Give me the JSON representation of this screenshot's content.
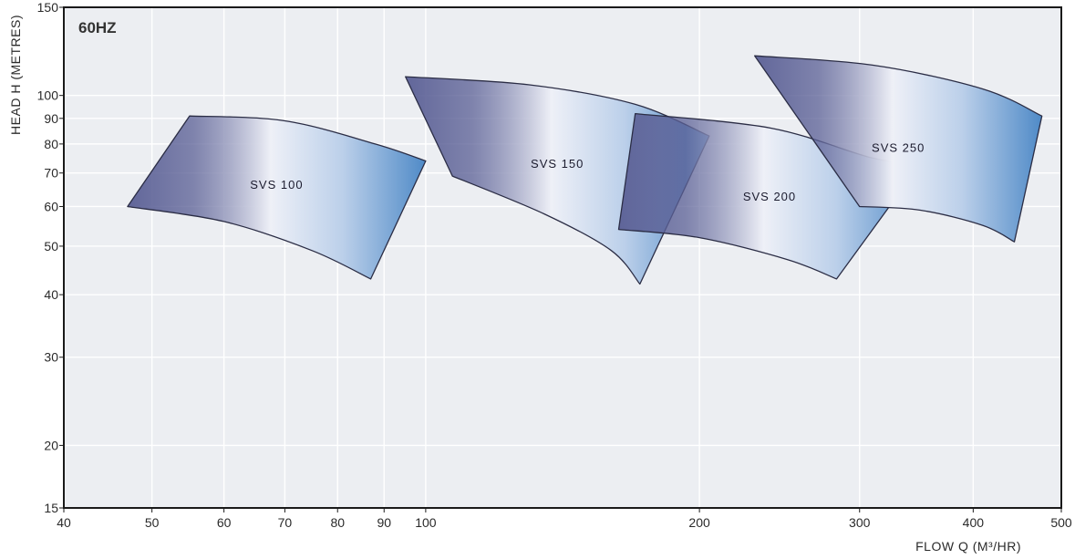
{
  "chart_data": {
    "type": "area",
    "badge": "60HZ",
    "xlabel": "FLOW Q (M³/HR)",
    "ylabel": "HEAD H (METRES)",
    "x_scale": "log",
    "y_scale": "log",
    "xlim": [
      40,
      500
    ],
    "ylim": [
      15,
      150
    ],
    "x_ticks": [
      40,
      50,
      60,
      70,
      80,
      90,
      100,
      200,
      300,
      400,
      500
    ],
    "y_ticks": [
      15,
      20,
      30,
      40,
      50,
      60,
      70,
      80,
      90,
      100,
      150
    ],
    "grid": true,
    "regions": [
      {
        "name": "SVS 100",
        "top_curve": [
          [
            55,
            91
          ],
          [
            70,
            89
          ],
          [
            88,
            80
          ],
          [
            100,
            74
          ]
        ],
        "bottom_curve": [
          [
            47,
            60
          ],
          [
            60,
            56
          ],
          [
            75,
            49
          ],
          [
            87,
            43
          ]
        ]
      },
      {
        "name": "SVS 150",
        "top_curve": [
          [
            95,
            109
          ],
          [
            130,
            105
          ],
          [
            170,
            96
          ],
          [
            205,
            83
          ]
        ],
        "bottom_curve": [
          [
            107,
            69
          ],
          [
            135,
            58
          ],
          [
            160,
            49
          ],
          [
            172,
            42
          ]
        ]
      },
      {
        "name": "SVS 200",
        "top_curve": [
          [
            170,
            92
          ],
          [
            240,
            86
          ],
          [
            310,
            75
          ],
          [
            350,
            73
          ]
        ],
        "bottom_curve": [
          [
            163,
            54
          ],
          [
            200,
            52
          ],
          [
            250,
            47
          ],
          [
            283,
            43
          ]
        ]
      },
      {
        "name": "SVS 250",
        "top_curve": [
          [
            230,
            120
          ],
          [
            310,
            115
          ],
          [
            410,
            103
          ],
          [
            476,
            91
          ]
        ],
        "bottom_curve": [
          [
            300,
            60
          ],
          [
            350,
            59
          ],
          [
            410,
            55
          ],
          [
            444,
            51
          ]
        ]
      }
    ],
    "colors": {
      "frame": "#1a1a1a",
      "plot_background": "#eceef2",
      "grid": "#ffffff",
      "region_dark": "#5a5f95",
      "region_light": "#eef0f7",
      "region_blue": "#4f8ac7",
      "region_outline": "#2b2d45"
    }
  }
}
